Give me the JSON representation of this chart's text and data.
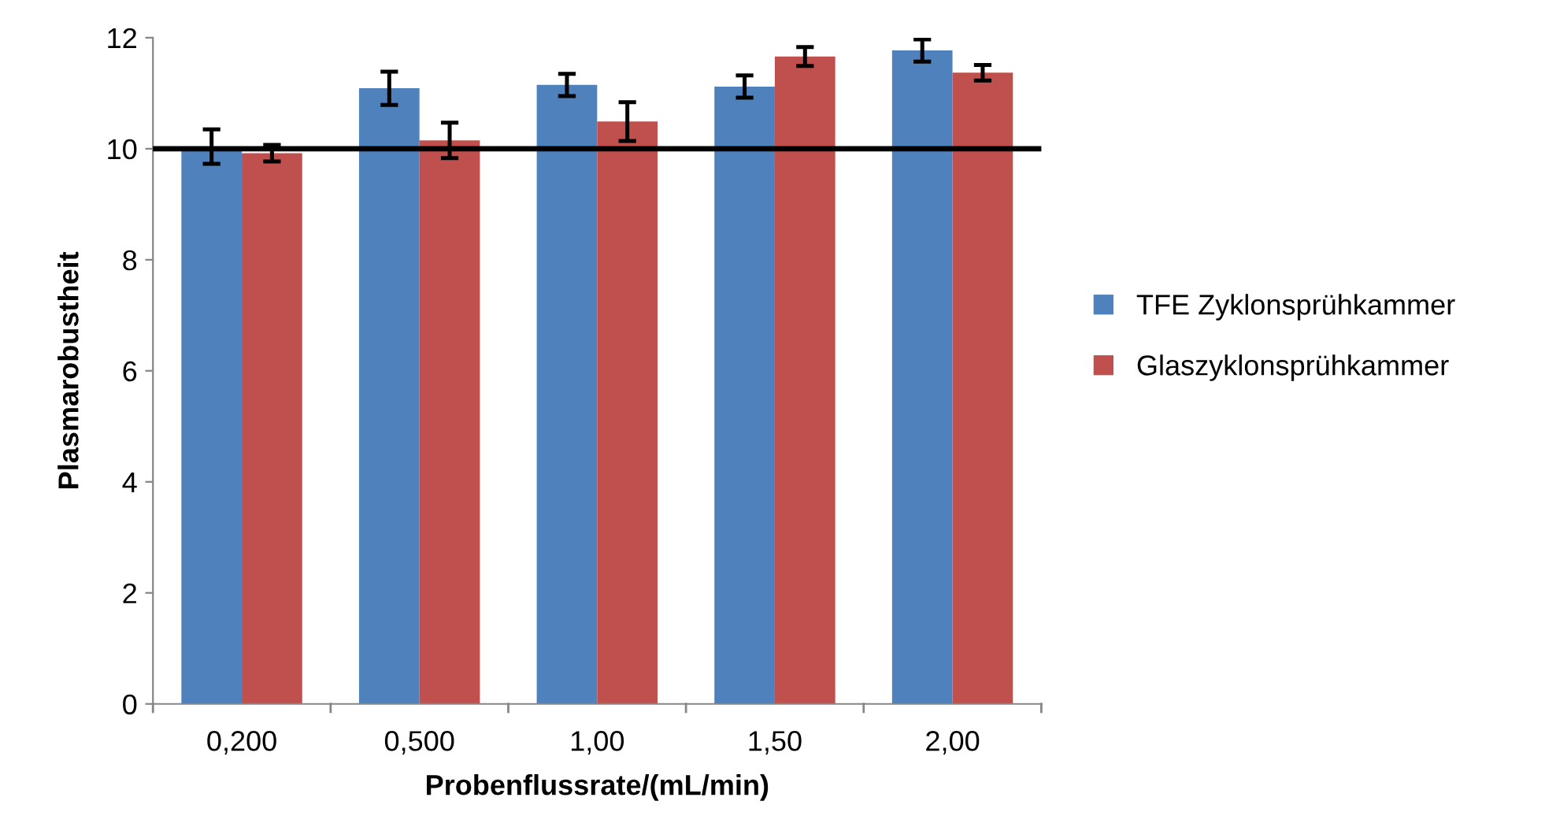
{
  "chart_data": {
    "type": "bar",
    "xlabel": "Probenflussrate/(mL/min)",
    "ylabel": "Plasmarobustheit",
    "categories": [
      "0,200",
      "0,500",
      "1,00",
      "1,50",
      "2,00"
    ],
    "series": [
      {
        "name": "TFE Zyklonsprühkammer",
        "color": "#4f81bd",
        "values": [
          10.04,
          11.09,
          11.15,
          11.12,
          11.77
        ],
        "errors": [
          0.31,
          0.3,
          0.2,
          0.2,
          0.2
        ]
      },
      {
        "name": "Glaszyklonsprühkammer",
        "color": "#c0504d",
        "values": [
          9.92,
          10.15,
          10.49,
          11.66,
          11.37
        ],
        "errors": [
          0.15,
          0.32,
          0.35,
          0.17,
          0.14
        ]
      }
    ],
    "ylim": [
      0,
      12
    ],
    "yticks": [
      0,
      2,
      4,
      6,
      8,
      10,
      12
    ],
    "ref_lines": [
      {
        "axis": "y",
        "value": 10,
        "color": "#000000"
      }
    ],
    "grid": false,
    "legend": "right"
  }
}
